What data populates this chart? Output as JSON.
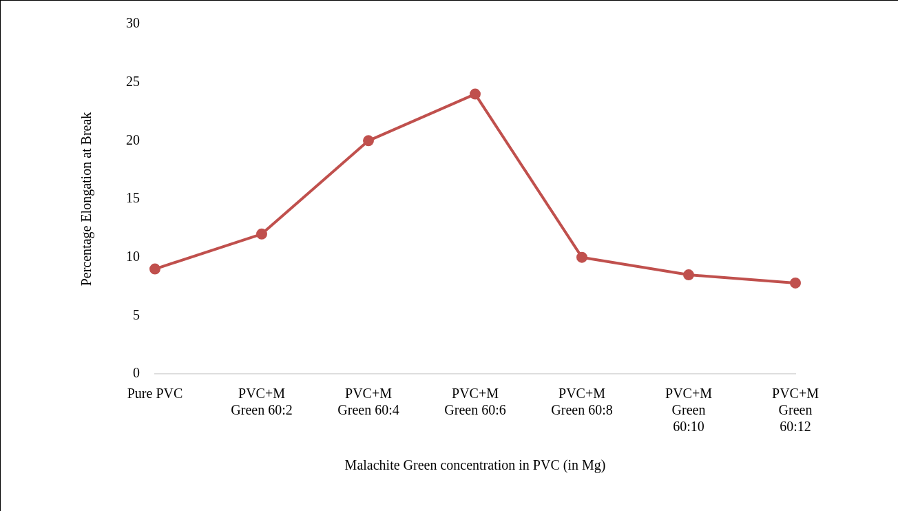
{
  "chart_data": {
    "type": "line",
    "xlabel": "Malachite Green concentration in PVC (in Mg)",
    "ylabel": "Percentage Elongation at Break",
    "categories": [
      "Pure PVC",
      "PVC+M Green 60:2",
      "PVC+M Green 60:4",
      "PVC+M Green 60:6",
      "PVC+M Green 60:8",
      "PVC+M Green 60:10",
      "PVC+M Green 60:12"
    ],
    "series": [
      {
        "color": "#c0504d",
        "values": [
          9,
          12,
          20,
          24,
          10,
          8.5,
          7.8
        ]
      }
    ],
    "ylim": [
      0,
      30
    ],
    "yticks": [
      0,
      5,
      10,
      15,
      20,
      25,
      30
    ],
    "grid": false,
    "legend": false,
    "marker": "circle",
    "line_style": "solid"
  }
}
